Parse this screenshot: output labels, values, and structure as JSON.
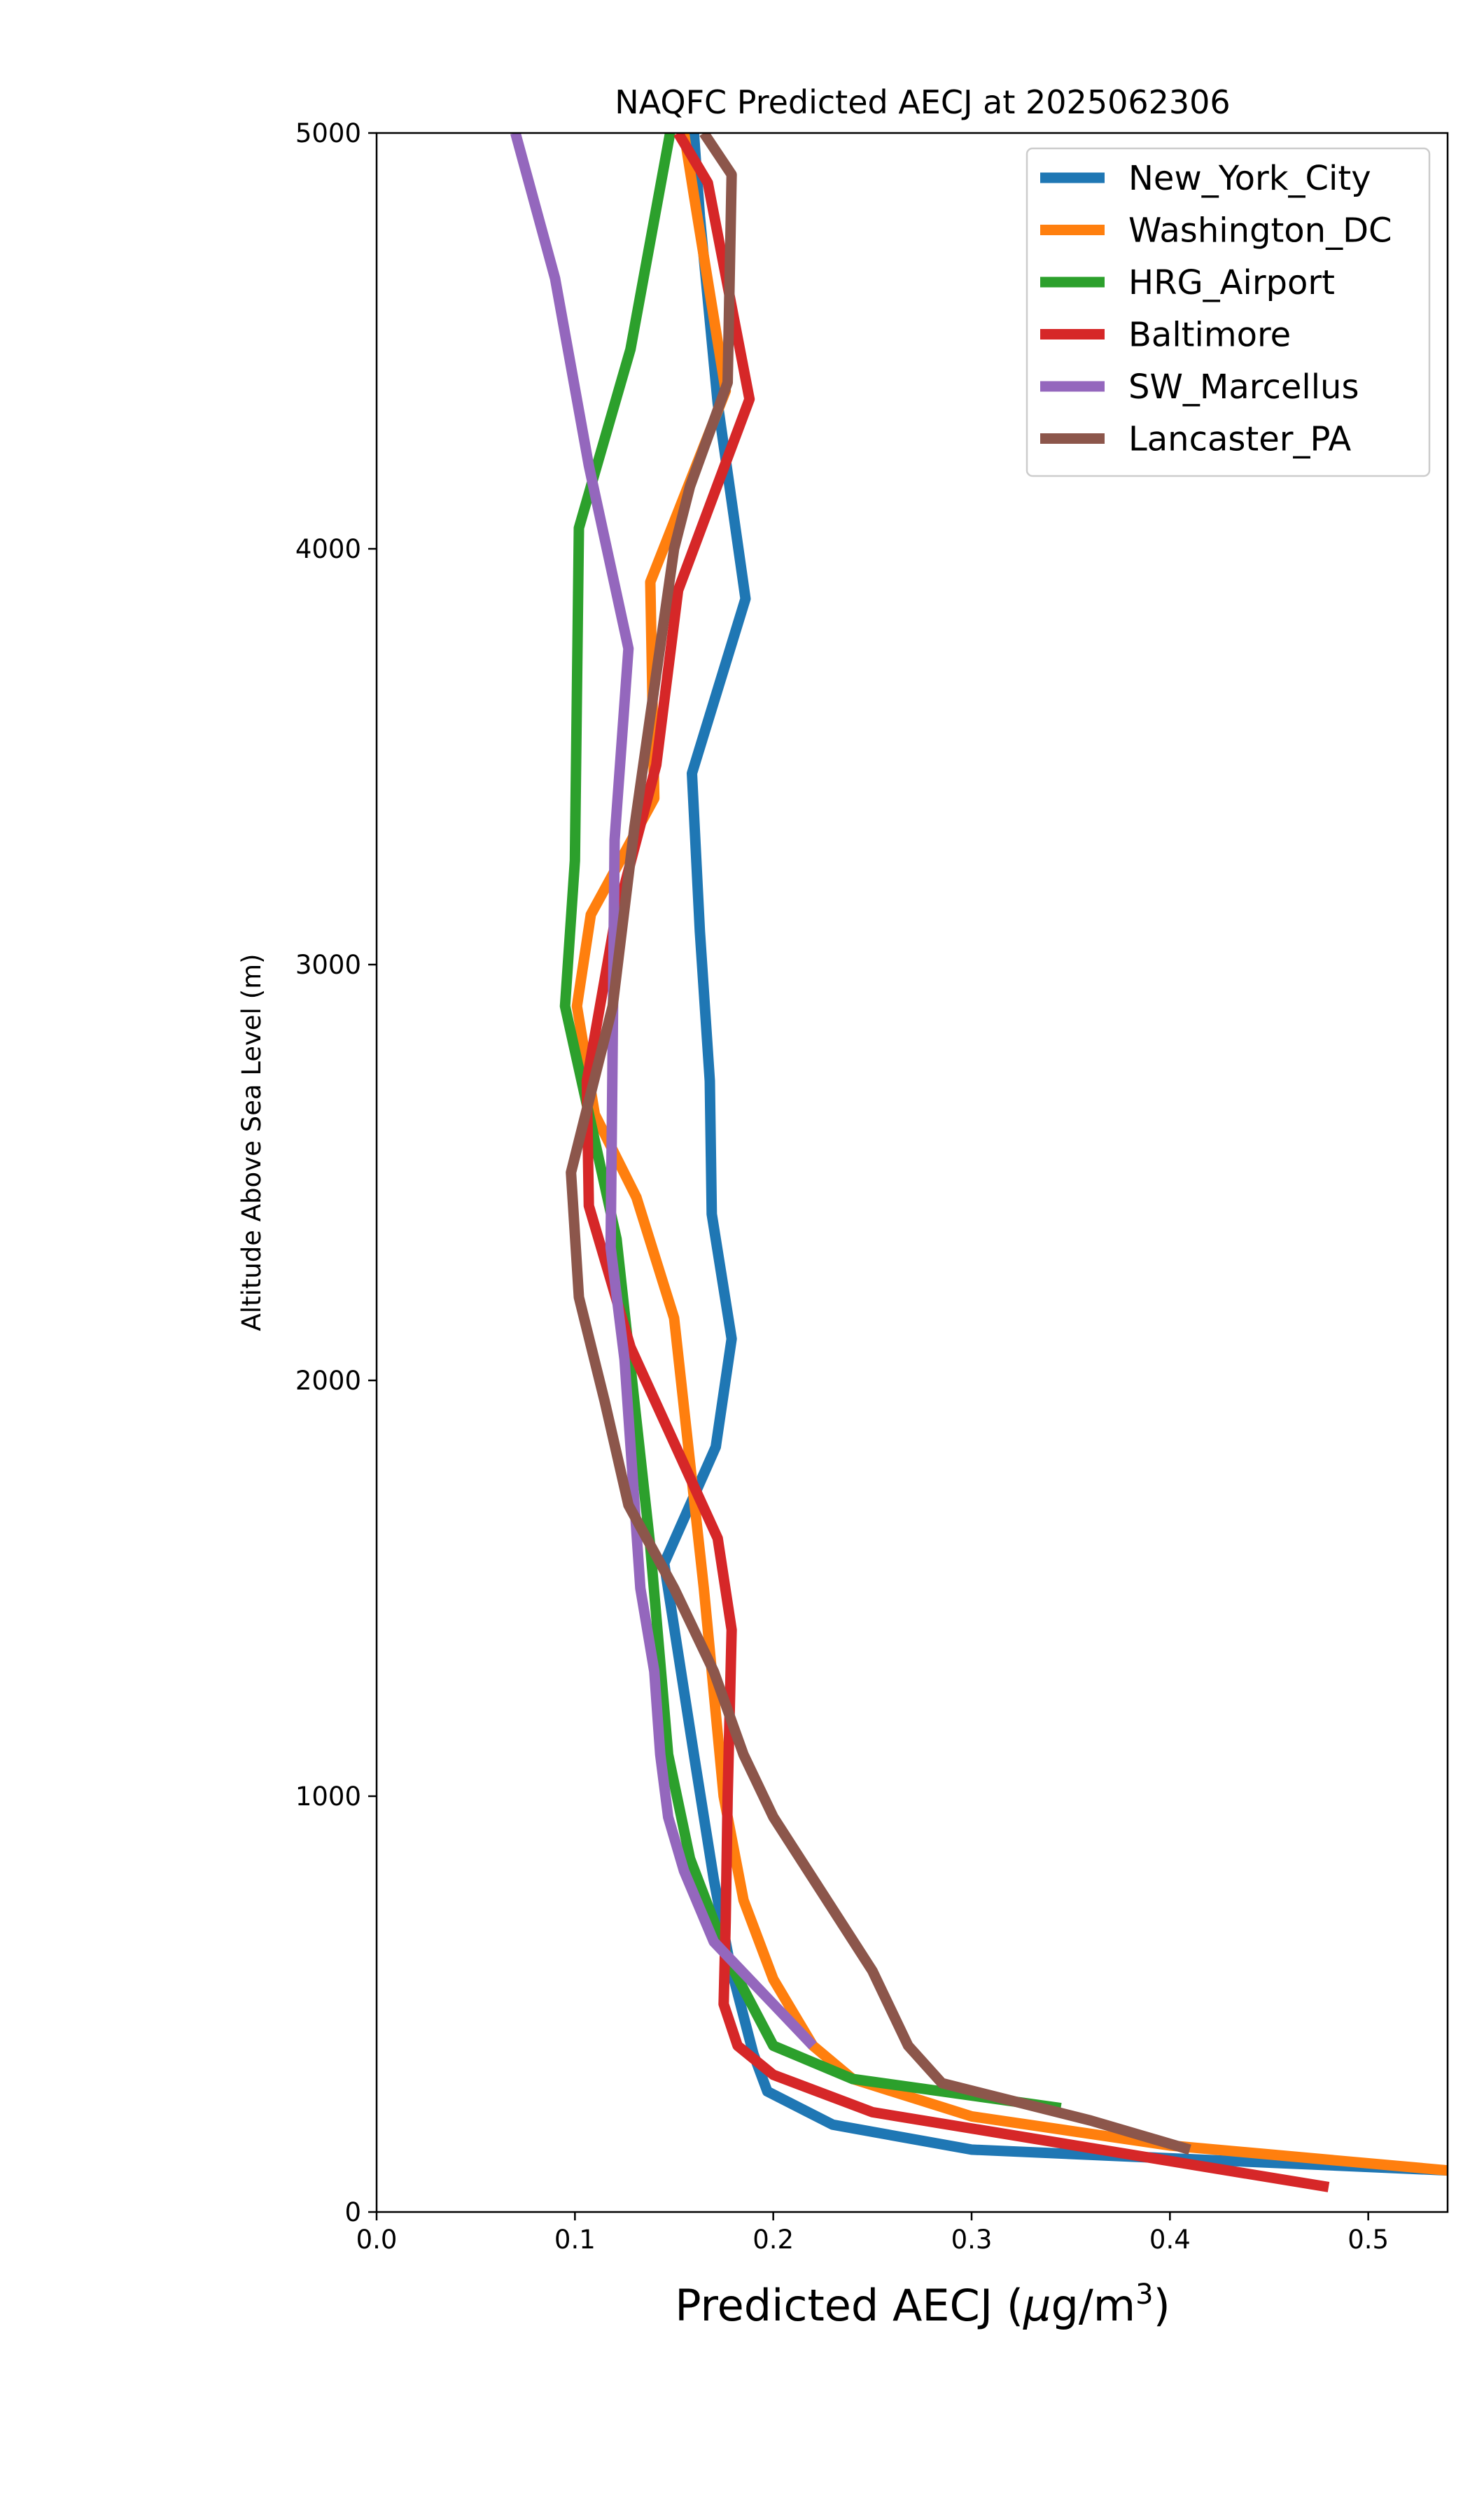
{
  "chart_data": {
    "type": "line",
    "title": "NAQFC Predicted AECJ at 2025062306",
    "xlabel_main": "Predicted AECJ (",
    "xlabel_mu": "μ",
    "xlabel_unit": "g/m",
    "xlabel_sup": "3",
    "xlabel_close": ")",
    "ylabel": "Altitude Above Sea Level (m)",
    "xlim": [
      0,
      0.54
    ],
    "ylim": [
      0,
      5000
    ],
    "xticks": [
      "0.0",
      "0.1",
      "0.2",
      "0.3",
      "0.4",
      "0.5"
    ],
    "yticks": [
      "0",
      "1000",
      "2000",
      "3000",
      "4000",
      "5000"
    ],
    "legend_position": "top-right",
    "series": [
      {
        "name": "New_York_City",
        "color": "#1f77b4",
        "points": [
          [
            0.54,
            100
          ],
          [
            0.3,
            150
          ],
          [
            0.23,
            210
          ],
          [
            0.197,
            290
          ],
          [
            0.19,
            380
          ],
          [
            0.178,
            600
          ],
          [
            0.17,
            800
          ],
          [
            0.16,
            1100
          ],
          [
            0.145,
            1560
          ],
          [
            0.171,
            1840
          ],
          [
            0.179,
            2100
          ],
          [
            0.169,
            2400
          ],
          [
            0.168,
            2720
          ],
          [
            0.163,
            3080
          ],
          [
            0.159,
            3460
          ],
          [
            0.186,
            3880
          ],
          [
            0.172,
            4350
          ],
          [
            0.163,
            4800
          ],
          [
            0.16,
            5000
          ]
        ]
      },
      {
        "name": "Washington_DC",
        "color": "#ff7f0e",
        "points": [
          [
            0.54,
            100
          ],
          [
            0.4,
            160
          ],
          [
            0.3,
            230
          ],
          [
            0.24,
            320
          ],
          [
            0.22,
            400
          ],
          [
            0.2,
            560
          ],
          [
            0.185,
            750
          ],
          [
            0.175,
            1000
          ],
          [
            0.165,
            1500
          ],
          [
            0.15,
            2150
          ],
          [
            0.131,
            2440
          ],
          [
            0.11,
            2640
          ],
          [
            0.101,
            2900
          ],
          [
            0.108,
            3120
          ],
          [
            0.14,
            3400
          ],
          [
            0.138,
            3920
          ],
          [
            0.176,
            4380
          ],
          [
            0.16,
            4850
          ],
          [
            0.155,
            5000
          ]
        ]
      },
      {
        "name": "HRG_Airport",
        "color": "#2ca02c",
        "points": [
          [
            0.345,
            250
          ],
          [
            0.24,
            320
          ],
          [
            0.2,
            400
          ],
          [
            0.178,
            600
          ],
          [
            0.158,
            850
          ],
          [
            0.147,
            1100
          ],
          [
            0.138,
            1600
          ],
          [
            0.121,
            2340
          ],
          [
            0.095,
            2900
          ],
          [
            0.1,
            3250
          ],
          [
            0.102,
            4050
          ],
          [
            0.128,
            4480
          ],
          [
            0.148,
            5000
          ]
        ]
      },
      {
        "name": "Baltimore",
        "color": "#d62728",
        "points": [
          [
            0.48,
            60
          ],
          [
            0.25,
            240
          ],
          [
            0.2,
            330
          ],
          [
            0.182,
            400
          ],
          [
            0.175,
            500
          ],
          [
            0.176,
            700
          ],
          [
            0.177,
            1000
          ],
          [
            0.179,
            1400
          ],
          [
            0.172,
            1620
          ],
          [
            0.128,
            2080
          ],
          [
            0.107,
            2420
          ],
          [
            0.106,
            2720
          ],
          [
            0.12,
            3100
          ],
          [
            0.141,
            3480
          ],
          [
            0.152,
            3900
          ],
          [
            0.188,
            4360
          ],
          [
            0.167,
            4880
          ],
          [
            0.152,
            5000
          ]
        ]
      },
      {
        "name": "SW_Marcellus",
        "color": "#9467bd",
        "points": [
          [
            0.22,
            400
          ],
          [
            0.2,
            500
          ],
          [
            0.17,
            650
          ],
          [
            0.155,
            820
          ],
          [
            0.147,
            950
          ],
          [
            0.143,
            1100
          ],
          [
            0.14,
            1300
          ],
          [
            0.133,
            1500
          ],
          [
            0.125,
            2050
          ],
          [
            0.118,
            2320
          ],
          [
            0.119,
            2800
          ],
          [
            0.12,
            3300
          ],
          [
            0.127,
            3760
          ],
          [
            0.107,
            4200
          ],
          [
            0.09,
            4650
          ],
          [
            0.07,
            5000
          ]
        ]
      },
      {
        "name": "Lancaster_PA",
        "color": "#8c564b",
        "points": [
          [
            0.41,
            150
          ],
          [
            0.36,
            220
          ],
          [
            0.285,
            310
          ],
          [
            0.268,
            400
          ],
          [
            0.25,
            580
          ],
          [
            0.2,
            950
          ],
          [
            0.185,
            1100
          ],
          [
            0.17,
            1300
          ],
          [
            0.15,
            1500
          ],
          [
            0.127,
            1700
          ],
          [
            0.115,
            1950
          ],
          [
            0.102,
            2200
          ],
          [
            0.098,
            2500
          ],
          [
            0.119,
            2900
          ],
          [
            0.13,
            3330
          ],
          [
            0.15,
            4000
          ],
          [
            0.158,
            4150
          ],
          [
            0.177,
            4400
          ],
          [
            0.179,
            4900
          ],
          [
            0.165,
            5000
          ]
        ]
      }
    ]
  }
}
